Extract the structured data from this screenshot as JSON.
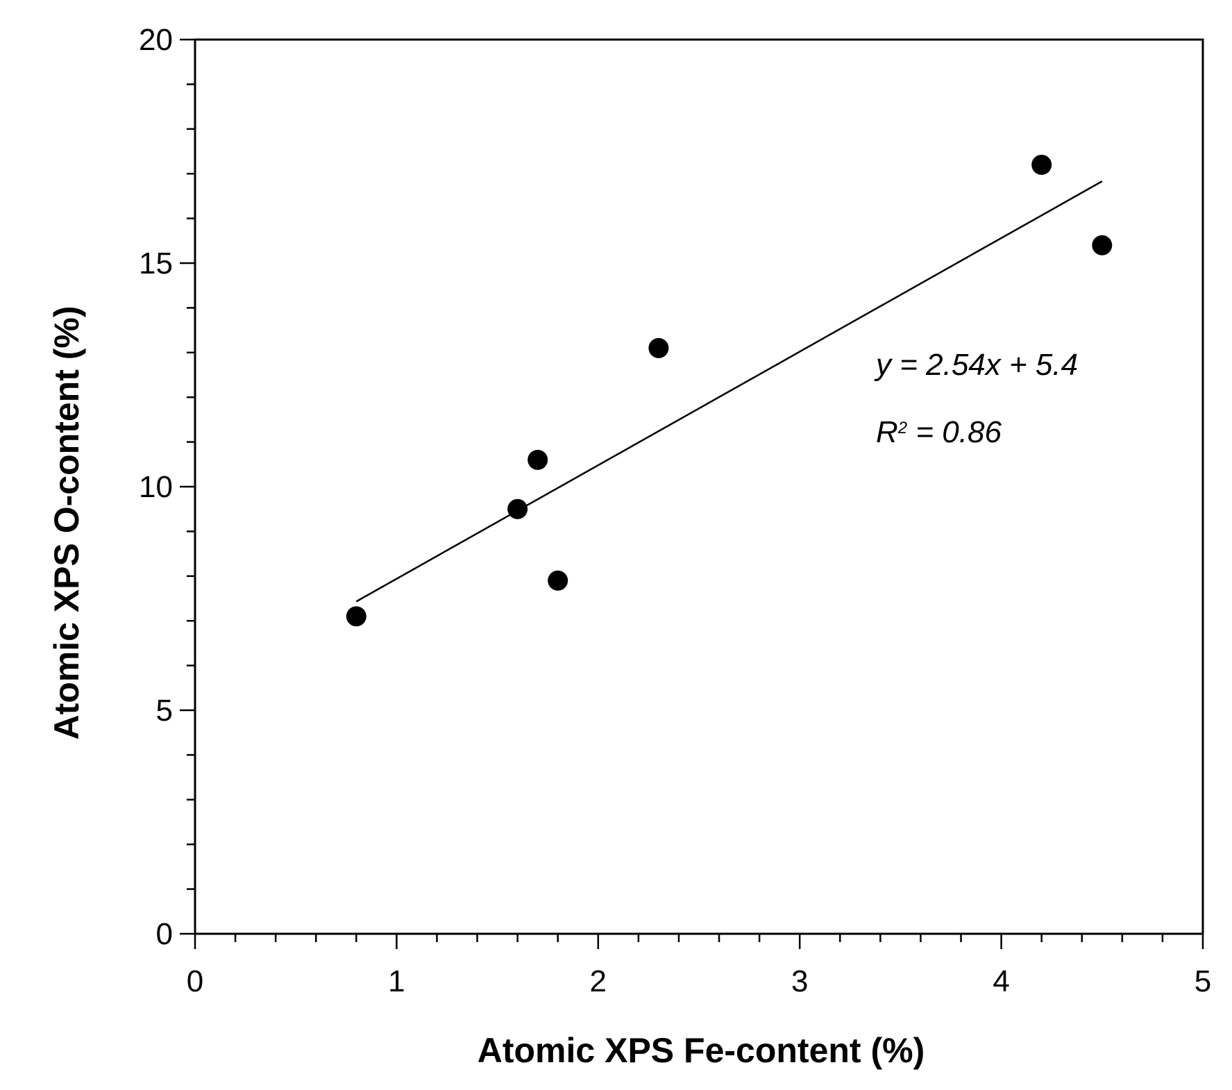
{
  "chart_data": {
    "type": "scatter",
    "xlabel": "Atomic XPS Fe-content (%)",
    "ylabel": "Atomic XPS O-content (%)",
    "xlim": [
      0,
      5
    ],
    "ylim": [
      0,
      20
    ],
    "x_ticks": [
      0,
      1,
      2,
      3,
      4,
      5
    ],
    "y_ticks": [
      0,
      5,
      10,
      15,
      20
    ],
    "x_tick_labels": [
      "0",
      "1",
      "2",
      "3",
      "4",
      "5"
    ],
    "y_tick_labels": [
      "0",
      "5",
      "10",
      "15",
      "20"
    ],
    "x_minor_step": 0.2,
    "y_minor_step": 1,
    "grid": false,
    "points": [
      {
        "x": 0.8,
        "y": 7.1
      },
      {
        "x": 1.6,
        "y": 9.5
      },
      {
        "x": 1.7,
        "y": 10.6
      },
      {
        "x": 1.8,
        "y": 7.9
      },
      {
        "x": 2.3,
        "y": 13.1
      },
      {
        "x": 4.2,
        "y": 17.2
      },
      {
        "x": 4.5,
        "y": 15.4
      }
    ],
    "fit": {
      "slope": 2.54,
      "intercept": 5.4,
      "x_range": [
        0.8,
        4.5
      ]
    },
    "annotation_equation": "y = 2.54x + 5.4",
    "annotation_r2_prefix": "R",
    "annotation_r2_sup": "2",
    "annotation_r2_suffix": " = 0.86",
    "point_color": "#000000"
  }
}
